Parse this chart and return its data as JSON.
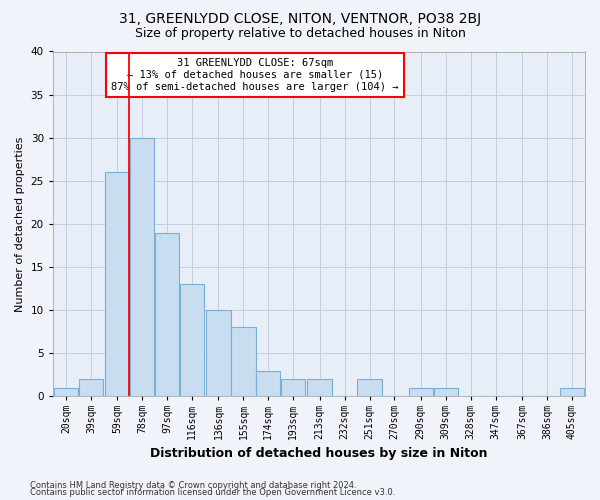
{
  "title": "31, GREENLYDD CLOSE, NITON, VENTNOR, PO38 2BJ",
  "subtitle": "Size of property relative to detached houses in Niton",
  "xlabel": "Distribution of detached houses by size in Niton",
  "ylabel": "Number of detached properties",
  "categories": [
    "20sqm",
    "39sqm",
    "59sqm",
    "78sqm",
    "97sqm",
    "116sqm",
    "136sqm",
    "155sqm",
    "174sqm",
    "193sqm",
    "213sqm",
    "232sqm",
    "251sqm",
    "270sqm",
    "290sqm",
    "309sqm",
    "328sqm",
    "347sqm",
    "367sqm",
    "386sqm",
    "405sqm"
  ],
  "bar_values": [
    1,
    2,
    26,
    30,
    19,
    13,
    10,
    8,
    3,
    2,
    2,
    0,
    2,
    0,
    1,
    1,
    0,
    0,
    0,
    0,
    1
  ],
  "bar_color": "#c8ddf0",
  "bar_edge_color": "#7ab0d8",
  "grid_color": "#c0cfe0",
  "background_color": "#f0f4fa",
  "plot_bg_color": "#e8eef8",
  "red_line_bin_index": 2,
  "annotation_text": "31 GREENLYDD CLOSE: 67sqm\n← 13% of detached houses are smaller (15)\n87% of semi-detached houses are larger (104) →",
  "footnote1": "Contains HM Land Registry data © Crown copyright and database right 2024.",
  "footnote2": "Contains public sector information licensed under the Open Government Licence v3.0.",
  "ylim_max": 40,
  "yticks": [
    0,
    5,
    10,
    15,
    20,
    25,
    30,
    35,
    40
  ],
  "title_fontsize": 10,
  "subtitle_fontsize": 9,
  "axis_label_fontsize": 8,
  "tick_fontsize": 7,
  "annot_fontsize": 7.5,
  "footnote_fontsize": 6
}
